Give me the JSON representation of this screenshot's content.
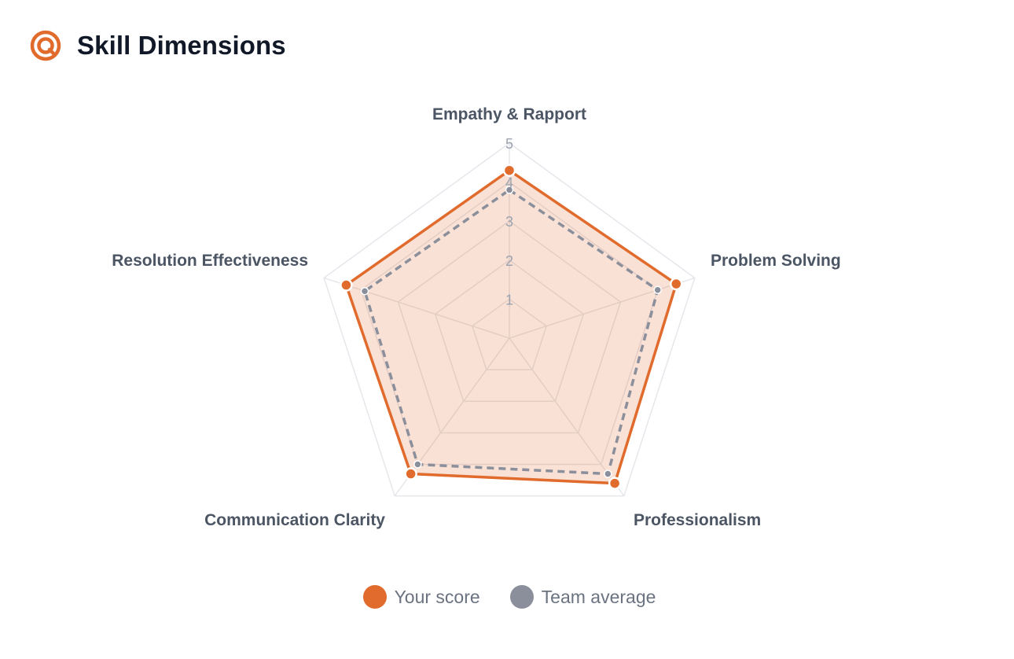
{
  "header": {
    "title": "Skill Dimensions",
    "icon": "target-icon",
    "accent_color": "#e06b2d"
  },
  "chart_data": {
    "type": "radar",
    "title": "Skill Dimensions",
    "axes": [
      "Empathy & Rapport",
      "Problem Solving",
      "Professionalism",
      "Communication Clarity",
      "Resolution Effectiveness"
    ],
    "scale": {
      "min": 0,
      "max": 5,
      "ticks": [
        1,
        2,
        3,
        4,
        5
      ]
    },
    "series": [
      {
        "name": "Your score",
        "values": [
          4.3,
          4.5,
          4.6,
          4.3,
          4.4
        ],
        "color": "#e06b2d",
        "line_style": "solid"
      },
      {
        "name": "Team average",
        "values": [
          3.8,
          4.0,
          4.3,
          4.0,
          3.9
        ],
        "color": "#8a8f9b",
        "line_style": "dashed"
      }
    ],
    "grid": true,
    "legend_position": "bottom-center"
  }
}
